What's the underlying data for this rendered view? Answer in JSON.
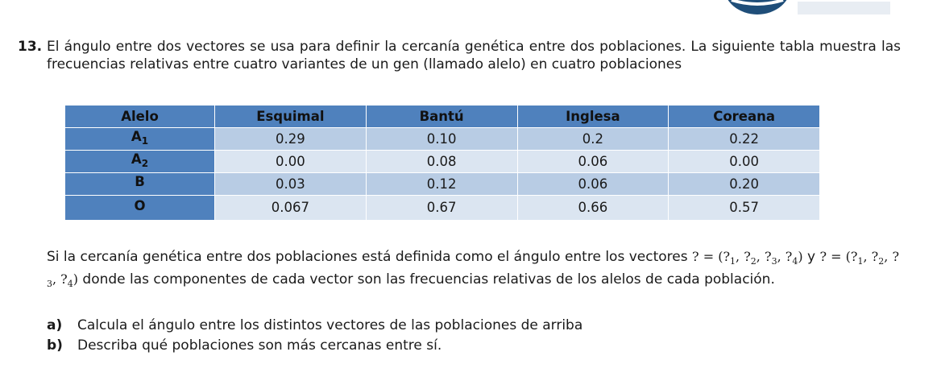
{
  "question": {
    "number": "13.",
    "text": "El ángulo entre dos vectores se usa para definir la cercanía genética entre dos poblaciones. La siguiente tabla muestra las frecuencias relativas entre cuatro variantes de un gen (llamado alelo) en cuatro poblaciones"
  },
  "table": {
    "headers": [
      "Alelo",
      "Esquimal",
      "Bantú",
      "Inglesa",
      "Coreana"
    ],
    "rows": [
      {
        "allele": "A",
        "sub": "1",
        "values": [
          "0.29",
          "0.10",
          "0.2",
          "0.22"
        ]
      },
      {
        "allele": "A",
        "sub": "2",
        "values": [
          "0.00",
          "0.08",
          "0.06",
          "0.00"
        ]
      },
      {
        "allele": "B",
        "sub": "",
        "values": [
          "0.03",
          "0.12",
          "0.06",
          "0.20"
        ]
      },
      {
        "allele": "O",
        "sub": "",
        "values": [
          "0.067",
          "0.67",
          "0.66",
          "0.57"
        ]
      }
    ]
  },
  "paragraph": {
    "part1": "Si la cercanía genética entre dos poblaciones está definida como el ángulo entre los vectores ",
    "vec1": "? = (?",
    "vec1_sub1": "1",
    "vec1_mid": ", ?",
    "vec1_sub2": "2",
    "vec1_mid2": ", ?",
    "vec1_sub3": "3",
    "vec1_mid3": ", ?",
    "vec1_sub4": "4",
    "vec1_end": ")",
    "y": "y ",
    "vec2": "? = (?",
    "vec2_sub1": "1",
    "vec2_mid": ", ?",
    "vec2_sub2": "2",
    "vec2_mid2": ", ?",
    "vec2_sub3": "3",
    "vec2_mid3": ", ?",
    "vec2_sub4": "4",
    "vec2_end": ")",
    "part2": " donde las componentes de cada vector son las frecuencias relativas de los alelos de cada población."
  },
  "items": [
    {
      "letter": "a)",
      "text": "Calcula el ángulo entre los distintos vectores de las poblaciones de arriba"
    },
    {
      "letter": "b)",
      "text": "Describa qué poblaciones son más cercanas entre sí."
    }
  ],
  "colors": {
    "header": "#4f81bd",
    "row_dark": "#b8cce4",
    "row_light": "#dbe5f1",
    "logo": "#1f4e79"
  }
}
